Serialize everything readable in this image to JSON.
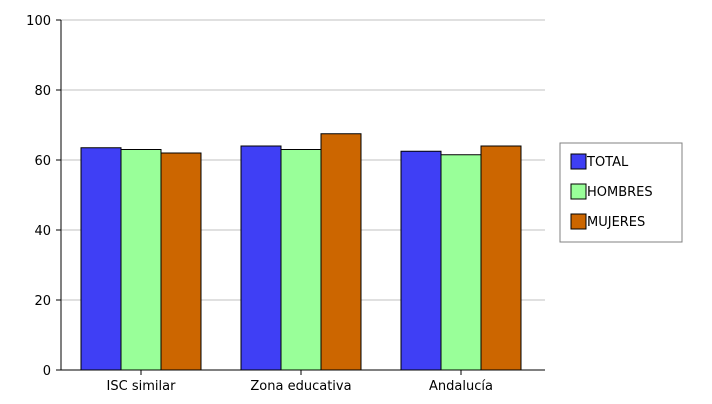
{
  "chart_data": {
    "type": "bar",
    "categories": [
      "ISC similar",
      "Zona educativa",
      "Andalucía"
    ],
    "series": [
      {
        "name": "TOTAL",
        "color": "#3f3ff5",
        "values": [
          63.5,
          64,
          62.5
        ]
      },
      {
        "name": "HOMBRES",
        "color": "#99ff99",
        "values": [
          63,
          63,
          61.5
        ]
      },
      {
        "name": "MUJERES",
        "color": "#cc6600",
        "values": [
          62,
          67.5,
          64
        ]
      }
    ],
    "ylim": [
      0,
      100
    ],
    "yticks": [
      0,
      20,
      40,
      60,
      80,
      100
    ],
    "grid": true,
    "legend_position": "right"
  }
}
